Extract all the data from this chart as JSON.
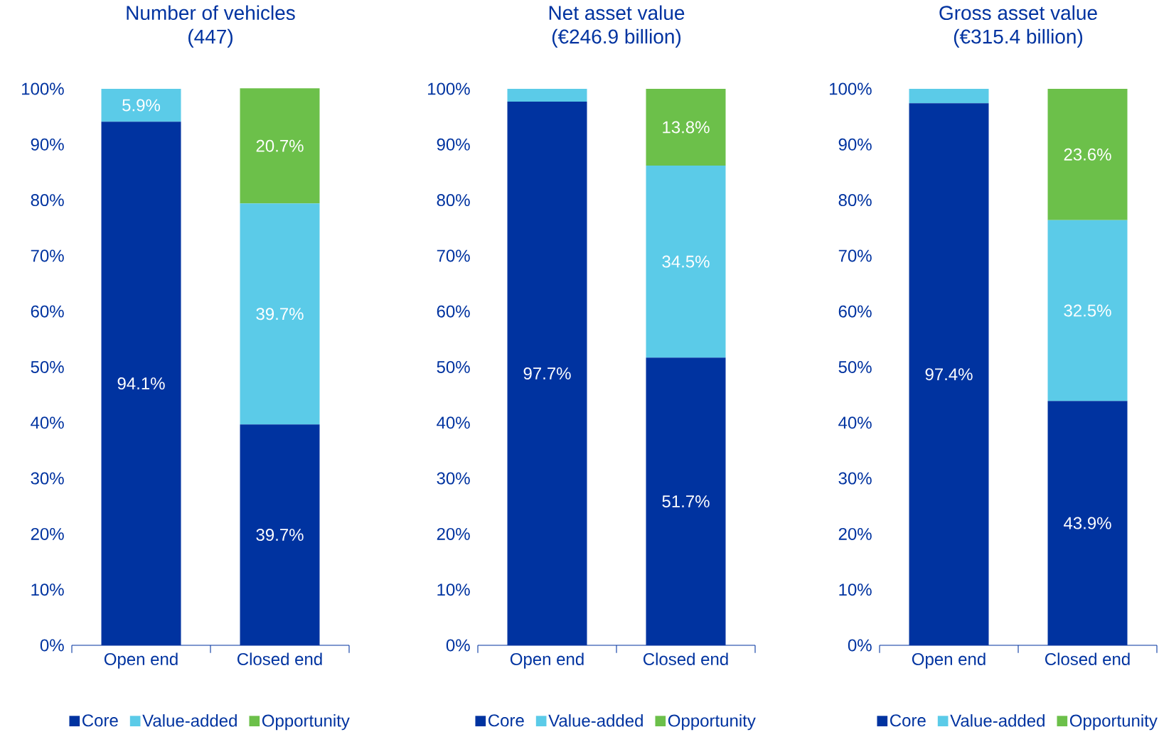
{
  "chart_data": [
    {
      "type": "bar",
      "title": "Number of vehicles",
      "subtitle": "(447)",
      "categories": [
        "Open end",
        "Closed end"
      ],
      "stacked": true,
      "legend": "bottom",
      "ylim": [
        0,
        100
      ],
      "yticks": [
        {
          "value": 0,
          "label": "0%"
        },
        {
          "value": 10,
          "label": "10%"
        },
        {
          "value": 20,
          "label": "20%"
        },
        {
          "value": 30,
          "label": "30%"
        },
        {
          "value": 40,
          "label": "40%"
        },
        {
          "value": 50,
          "label": "50%"
        },
        {
          "value": 60,
          "label": "60%"
        },
        {
          "value": 70,
          "label": "70%"
        },
        {
          "value": 80,
          "label": "80%"
        },
        {
          "value": 90,
          "label": "90%"
        },
        {
          "value": 100,
          "label": "100%"
        }
      ],
      "series": [
        {
          "name": "Core",
          "color": "#0033a0",
          "values": [
            94.1,
            39.7
          ],
          "value_labels": [
            "94.1%",
            "39.7%"
          ]
        },
        {
          "name": "Value-added",
          "color": "#5bcbe8",
          "values": [
            5.9,
            39.7
          ],
          "value_labels": [
            "5.9%",
            "39.7%"
          ]
        },
        {
          "name": "Opportunity",
          "color": "#6cc04a",
          "values": [
            null,
            20.7
          ],
          "value_labels": [
            null,
            "20.7%"
          ]
        }
      ]
    },
    {
      "type": "bar",
      "title": "Net asset value",
      "subtitle": "(€246.9 billion)",
      "categories": [
        "Open end",
        "Closed end"
      ],
      "stacked": true,
      "legend": "bottom",
      "ylim": [
        0,
        100
      ],
      "yticks": [
        {
          "value": 0,
          "label": "0%"
        },
        {
          "value": 10,
          "label": "10%"
        },
        {
          "value": 20,
          "label": "20%"
        },
        {
          "value": 30,
          "label": "30%"
        },
        {
          "value": 40,
          "label": "40%"
        },
        {
          "value": 50,
          "label": "50%"
        },
        {
          "value": 60,
          "label": "60%"
        },
        {
          "value": 70,
          "label": "70%"
        },
        {
          "value": 80,
          "label": "80%"
        },
        {
          "value": 90,
          "label": "90%"
        },
        {
          "value": 100,
          "label": "100%"
        }
      ],
      "series": [
        {
          "name": "Core",
          "color": "#0033a0",
          "values": [
            97.7,
            51.7
          ],
          "value_labels": [
            "97.7%",
            "51.7%"
          ]
        },
        {
          "name": "Value-added",
          "color": "#5bcbe8",
          "values": [
            2.3,
            34.5
          ],
          "value_labels": [
            null,
            "34.5%"
          ]
        },
        {
          "name": "Opportunity",
          "color": "#6cc04a",
          "values": [
            null,
            13.8
          ],
          "value_labels": [
            null,
            "13.8%"
          ]
        }
      ]
    },
    {
      "type": "bar",
      "title": "Gross asset value",
      "subtitle": "(€315.4 billion)",
      "categories": [
        "Open end",
        "Closed end"
      ],
      "stacked": true,
      "legend": "bottom",
      "ylim": [
        0,
        100
      ],
      "yticks": [
        {
          "value": 0,
          "label": "0%"
        },
        {
          "value": 10,
          "label": "10%"
        },
        {
          "value": 20,
          "label": "20%"
        },
        {
          "value": 30,
          "label": "30%"
        },
        {
          "value": 40,
          "label": "40%"
        },
        {
          "value": 50,
          "label": "50%"
        },
        {
          "value": 60,
          "label": "60%"
        },
        {
          "value": 70,
          "label": "70%"
        },
        {
          "value": 80,
          "label": "80%"
        },
        {
          "value": 90,
          "label": "90%"
        },
        {
          "value": 100,
          "label": "100%"
        }
      ],
      "series": [
        {
          "name": "Core",
          "color": "#0033a0",
          "values": [
            97.4,
            43.9
          ],
          "value_labels": [
            "97.4%",
            "43.9%"
          ]
        },
        {
          "name": "Value-added",
          "color": "#5bcbe8",
          "values": [
            2.6,
            32.5
          ],
          "value_labels": [
            null,
            "32.5%"
          ]
        },
        {
          "name": "Opportunity",
          "color": "#6cc04a",
          "values": [
            null,
            23.6
          ],
          "value_labels": [
            null,
            "23.6%"
          ]
        }
      ]
    }
  ]
}
